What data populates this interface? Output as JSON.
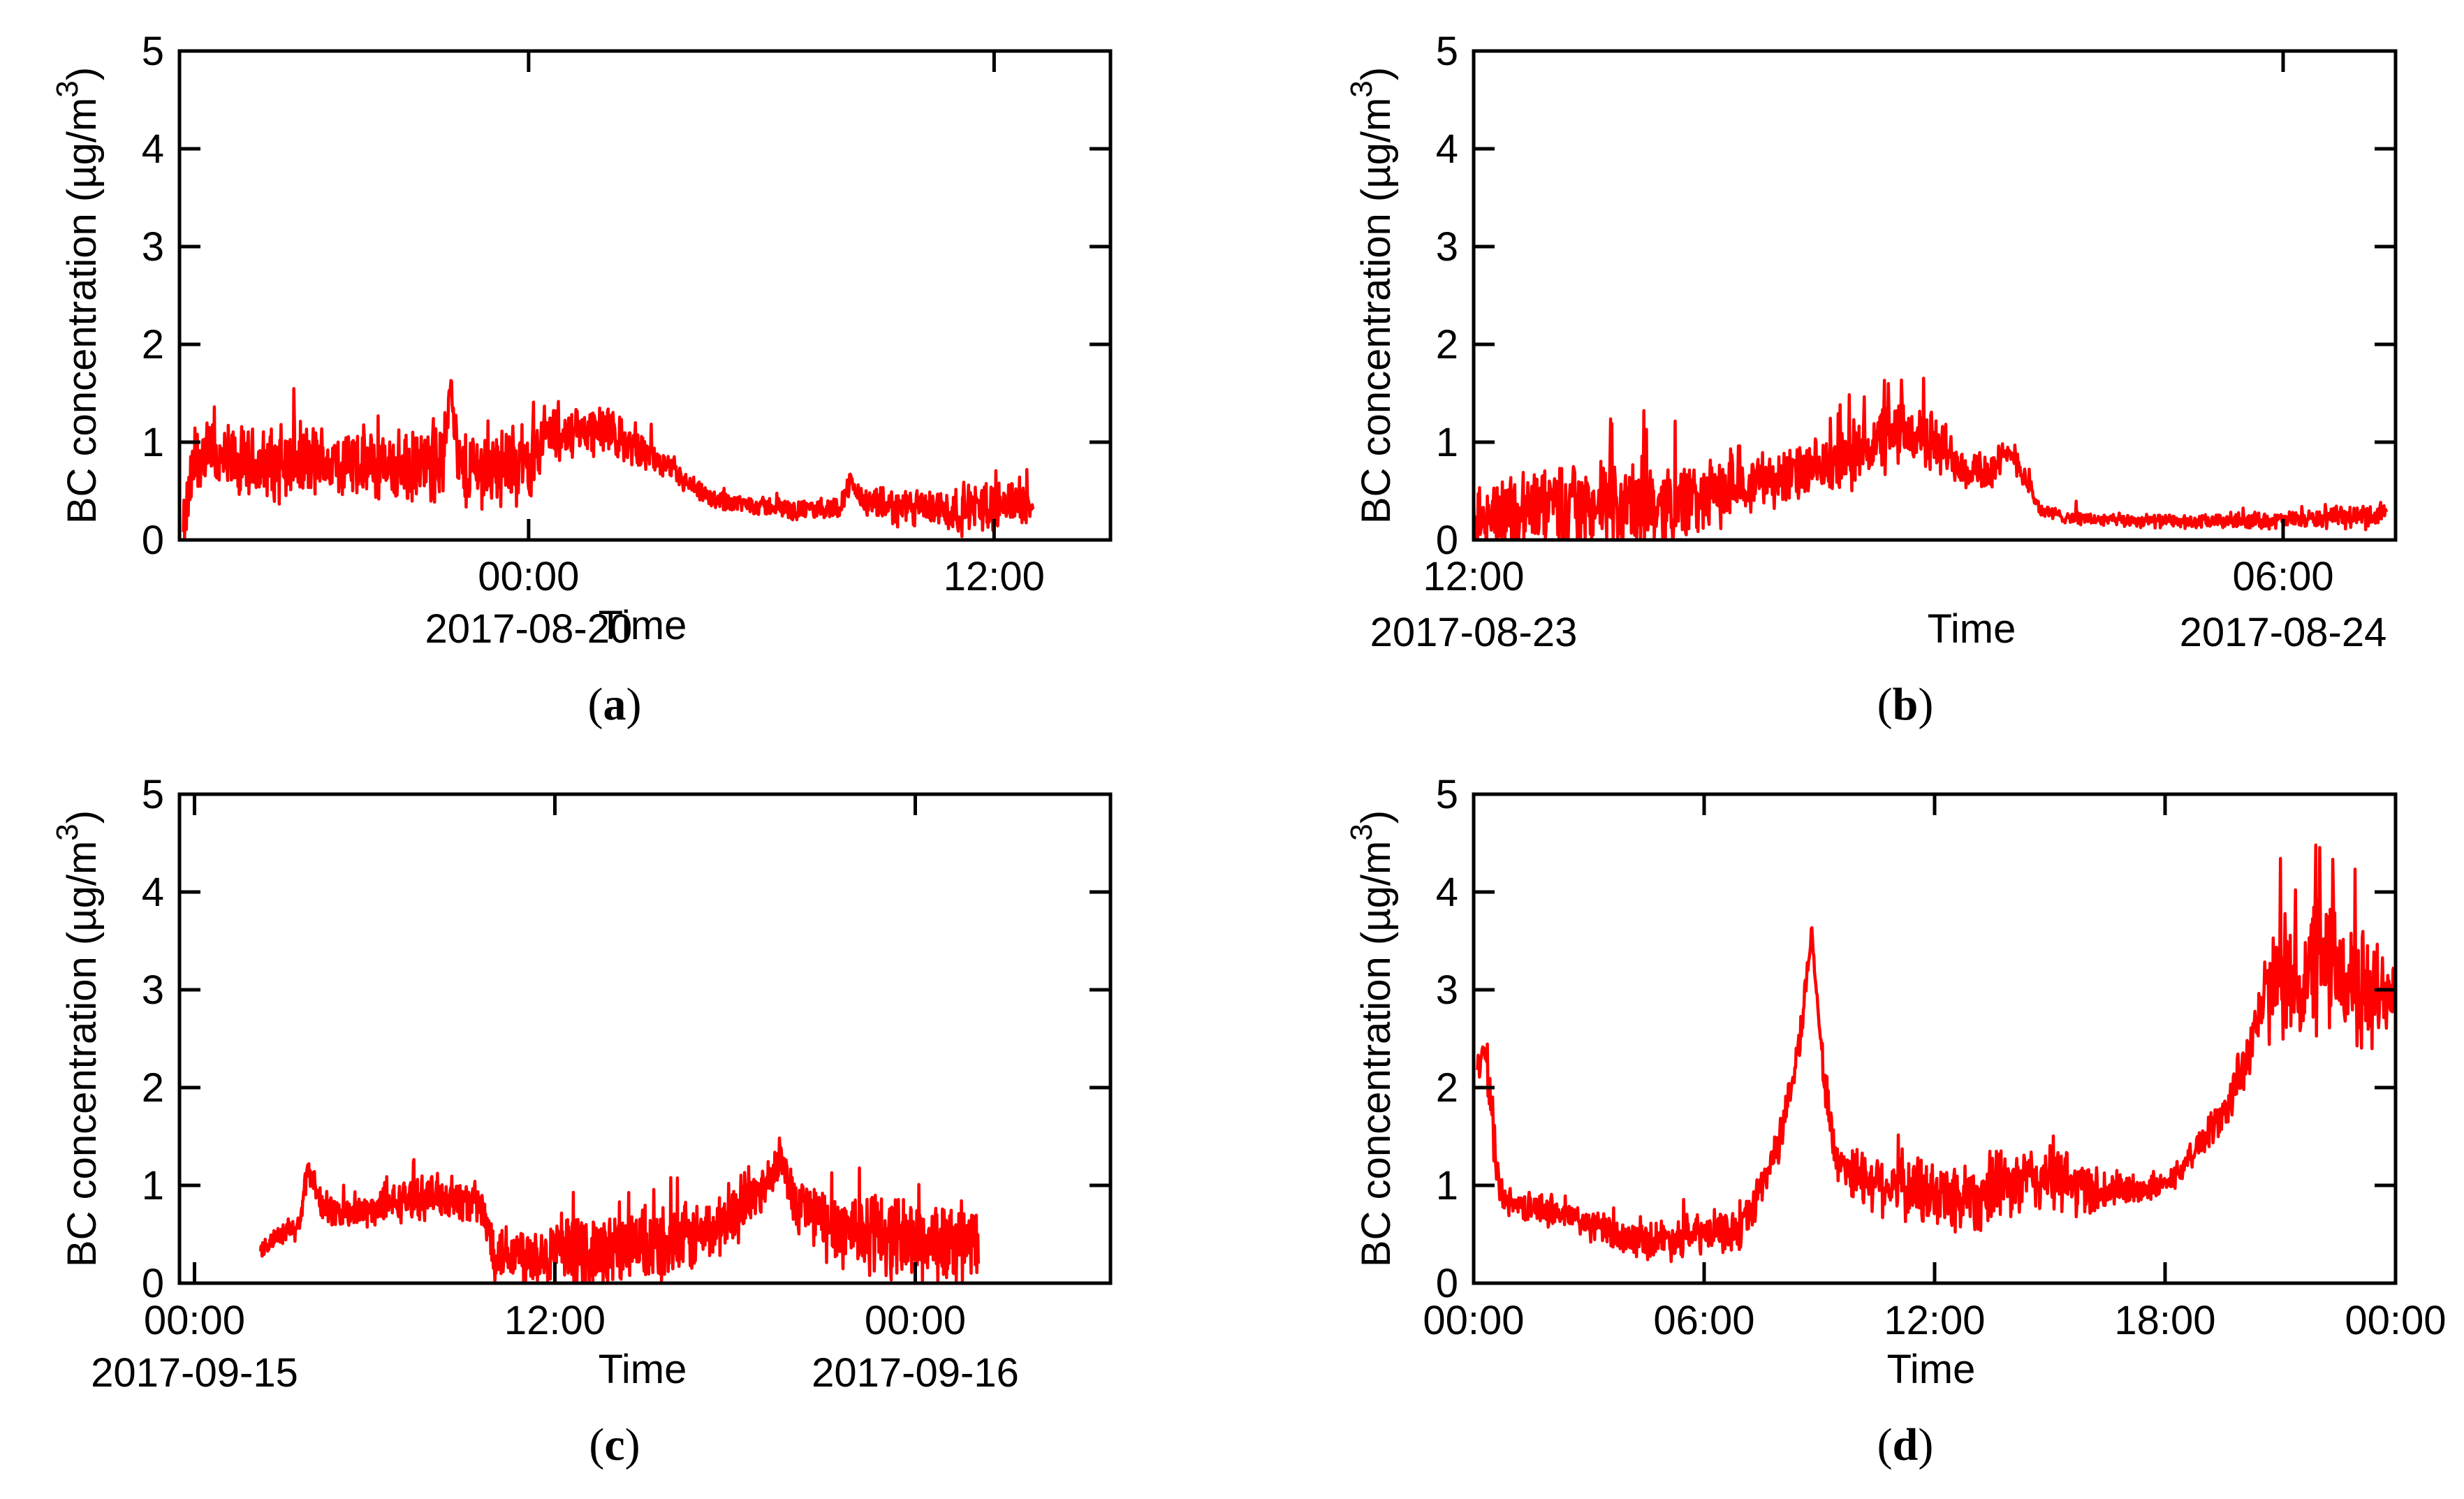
{
  "chart_data": [
    {
      "id": "a",
      "type": "line",
      "panel_label": "a",
      "ylabel": "BC concentration (µg/m",
      "ylabel_sup": "3",
      "ylabel_close": ")",
      "xlabel": "Time",
      "ylim": [
        0,
        5
      ],
      "yticks": [
        "0",
        "1",
        "2",
        "3",
        "4",
        "5"
      ],
      "xlim": [
        -9,
        15
      ],
      "xticks": [
        {
          "x": 0,
          "label": "00:00"
        },
        {
          "x": 12,
          "label": "12:00"
        }
      ],
      "date_labels": [
        {
          "x": 0,
          "label": "2017-08-20"
        }
      ],
      "series_color": "#ff0000",
      "series": [
        {
          "name": "BC",
          "x_start": -8.9,
          "x_end": 13.0,
          "points": [
            [
              -8.9,
              0.0
            ],
            [
              -8.7,
              0.6
            ],
            [
              -8.5,
              0.9
            ],
            [
              -8,
              0.8
            ],
            [
              -7,
              0.75
            ],
            [
              -6,
              0.8
            ],
            [
              -5,
              0.8
            ],
            [
              -4,
              0.75
            ],
            [
              -3,
              0.7
            ],
            [
              -2.2,
              0.8
            ],
            [
              -2,
              1.7
            ],
            [
              -1.8,
              0.7
            ],
            [
              -1,
              0.75
            ],
            [
              0,
              0.8
            ],
            [
              0.5,
              1.1
            ],
            [
              1,
              1.05
            ],
            [
              1.5,
              1.15
            ],
            [
              2,
              1.1
            ],
            [
              2.5,
              1.0
            ],
            [
              3,
              0.9
            ],
            [
              3.5,
              0.75
            ],
            [
              4,
              0.6
            ],
            [
              4.5,
              0.45
            ],
            [
              5,
              0.4
            ],
            [
              6,
              0.35
            ],
            [
              7,
              0.3
            ],
            [
              8,
              0.33
            ],
            [
              8.3,
              0.6
            ],
            [
              8.6,
              0.4
            ],
            [
              9,
              0.35
            ],
            [
              10,
              0.32
            ],
            [
              11,
              0.3
            ],
            [
              12,
              0.35
            ],
            [
              12.5,
              0.4
            ],
            [
              13.0,
              0.35
            ]
          ],
          "noise": [
            0.45,
            0.45,
            0.45,
            0.45,
            0.45,
            0.45,
            0.45,
            0.45,
            0.45,
            0.45,
            0.2,
            0.5,
            0.5,
            0.45,
            0.35,
            0.3,
            0.3,
            0.3,
            0.25,
            0.2,
            0.15,
            0.15,
            0.12,
            0.12,
            0.12,
            0.12,
            0.12,
            0.15,
            0.15,
            0.2,
            0.25,
            0.3,
            0.3,
            0.3,
            0.2
          ]
        }
      ]
    },
    {
      "id": "b",
      "type": "line",
      "panel_label": "b",
      "ylabel": "BC concentration (µg/m",
      "ylabel_sup": "3",
      "ylabel_close": ")",
      "xlabel": "Time",
      "ylim": [
        0,
        5
      ],
      "yticks": [
        "0",
        "1",
        "2",
        "3",
        "4",
        "5"
      ],
      "xlim": [
        12,
        32.5
      ],
      "xticks": [
        {
          "x": 12,
          "label": "12:00"
        },
        {
          "x": 30,
          "label": "06:00"
        }
      ],
      "date_labels": [
        {
          "x": 12,
          "label": "2017-08-23"
        },
        {
          "x": 30,
          "label": "2017-08-24"
        }
      ],
      "series_color": "#ff0000",
      "series": [
        {
          "name": "BC",
          "x_start": 12.0,
          "x_end": 32.3,
          "points": [
            [
              12.0,
              0.2
            ],
            [
              13,
              0.3
            ],
            [
              14,
              0.35
            ],
            [
              15,
              0.3
            ],
            [
              16,
              0.35
            ],
            [
              17,
              0.4
            ],
            [
              17.5,
              0.5
            ],
            [
              18,
              0.6
            ],
            [
              19,
              0.65
            ],
            [
              20,
              0.75
            ],
            [
              20.5,
              0.9
            ],
            [
              21,
              1.0
            ],
            [
              21.5,
              1.1
            ],
            [
              22,
              1.05
            ],
            [
              22.5,
              0.9
            ],
            [
              23,
              0.75
            ],
            [
              23.5,
              0.7
            ],
            [
              24,
              0.9
            ],
            [
              24.3,
              0.6
            ],
            [
              24.6,
              0.3
            ],
            [
              25,
              0.25
            ],
            [
              26,
              0.2
            ],
            [
              27,
              0.2
            ],
            [
              28,
              0.18
            ],
            [
              29,
              0.2
            ],
            [
              30,
              0.2
            ],
            [
              31,
              0.22
            ],
            [
              32,
              0.25
            ],
            [
              32.3,
              0.3
            ]
          ],
          "noise": [
            0.35,
            0.55,
            0.6,
            0.6,
            0.55,
            0.45,
            0.4,
            0.35,
            0.35,
            0.35,
            0.4,
            0.45,
            0.4,
            0.4,
            0.35,
            0.3,
            0.25,
            0.2,
            0.15,
            0.1,
            0.08,
            0.08,
            0.08,
            0.08,
            0.1,
            0.1,
            0.12,
            0.15,
            0.15
          ]
        }
      ]
    },
    {
      "id": "c",
      "type": "line",
      "panel_label": "c",
      "ylabel": "BC concentration (µg/m",
      "ylabel_sup": "3",
      "ylabel_close": ")",
      "xlabel": "Time",
      "ylim": [
        0,
        5
      ],
      "yticks": [
        "0",
        "1",
        "2",
        "3",
        "4",
        "5"
      ],
      "xlim": [
        -0.5,
        30.5
      ],
      "xticks": [
        {
          "x": 0,
          "label": "00:00"
        },
        {
          "x": 12,
          "label": "12:00"
        },
        {
          "x": 24,
          "label": "00:00"
        }
      ],
      "date_labels": [
        {
          "x": 0,
          "label": "2017-09-15"
        },
        {
          "x": 24,
          "label": "2017-09-16"
        }
      ],
      "series_color": "#ff0000",
      "series": [
        {
          "name": "BC",
          "x_start": 2.2,
          "x_end": 26.1,
          "points": [
            [
              2.2,
              0.35
            ],
            [
              3,
              0.5
            ],
            [
              3.5,
              0.6
            ],
            [
              3.8,
              1.2
            ],
            [
              4.2,
              0.8
            ],
            [
              5,
              0.7
            ],
            [
              6,
              0.75
            ],
            [
              7,
              0.85
            ],
            [
              8,
              0.9
            ],
            [
              9,
              0.85
            ],
            [
              9.5,
              0.8
            ],
            [
              10,
              0.35
            ],
            [
              11,
              0.3
            ],
            [
              12,
              0.3
            ],
            [
              13,
              0.3
            ],
            [
              14,
              0.35
            ],
            [
              15,
              0.35
            ],
            [
              16,
              0.4
            ],
            [
              17,
              0.5
            ],
            [
              18,
              0.7
            ],
            [
              19,
              1.0
            ],
            [
              19.5,
              1.3
            ],
            [
              20,
              0.85
            ],
            [
              21,
              0.6
            ],
            [
              22,
              0.55
            ],
            [
              23,
              0.5
            ],
            [
              24,
              0.45
            ],
            [
              25,
              0.4
            ],
            [
              26,
              0.4
            ],
            [
              26.1,
              0.3
            ]
          ],
          "noise": [
            0.1,
            0.15,
            0.2,
            0.15,
            0.2,
            0.2,
            0.2,
            0.25,
            0.25,
            0.25,
            0.25,
            0.35,
            0.4,
            0.4,
            0.45,
            0.45,
            0.45,
            0.45,
            0.4,
            0.35,
            0.3,
            0.2,
            0.35,
            0.45,
            0.5,
            0.5,
            0.5,
            0.5,
            0.45,
            0.3
          ]
        }
      ]
    },
    {
      "id": "d",
      "type": "line",
      "panel_label": "d",
      "ylabel": "BC concentration (µg/m",
      "ylabel_sup": "3",
      "ylabel_close": ")",
      "xlabel": "Time",
      "ylim": [
        0,
        5
      ],
      "yticks": [
        "0",
        "1",
        "2",
        "3",
        "4",
        "5"
      ],
      "xlim": [
        0,
        24
      ],
      "xticks": [
        {
          "x": 0,
          "label": "00:00"
        },
        {
          "x": 6,
          "label": "06:00"
        },
        {
          "x": 12,
          "label": "12:00"
        },
        {
          "x": 18,
          "label": "18:00"
        },
        {
          "x": 24,
          "label": "00:00"
        }
      ],
      "date_labels": [],
      "series_color": "#ff0000",
      "series": [
        {
          "name": "BC",
          "x_start": 0.1,
          "x_end": 23.95,
          "points": [
            [
              0.1,
              2.2
            ],
            [
              0.3,
              2.4
            ],
            [
              0.5,
              1.6
            ],
            [
              0.7,
              0.9
            ],
            [
              1,
              0.8
            ],
            [
              2,
              0.75
            ],
            [
              3,
              0.6
            ],
            [
              4,
              0.45
            ],
            [
              5,
              0.45
            ],
            [
              6,
              0.5
            ],
            [
              7,
              0.55
            ],
            [
              7.5,
              1.0
            ],
            [
              8,
              1.5
            ],
            [
              8.5,
              2.5
            ],
            [
              8.8,
              3.6
            ],
            [
              9.1,
              2.2
            ],
            [
              9.4,
              1.3
            ],
            [
              10,
              1.1
            ],
            [
              11,
              1.0
            ],
            [
              12,
              0.9
            ],
            [
              13,
              0.9
            ],
            [
              14,
              1.0
            ],
            [
              15,
              1.1
            ],
            [
              16,
              0.95
            ],
            [
              17,
              0.95
            ],
            [
              18,
              1.0
            ],
            [
              18.5,
              1.2
            ],
            [
              19,
              1.5
            ],
            [
              19.5,
              1.7
            ],
            [
              20,
              2.2
            ],
            [
              20.5,
              2.8
            ],
            [
              21,
              3.2
            ],
            [
              21.5,
              3.0
            ],
            [
              22,
              3.3
            ],
            [
              22.5,
              3.2
            ],
            [
              23,
              3.0
            ],
            [
              23.5,
              2.9
            ],
            [
              23.95,
              3.1
            ]
          ],
          "noise": [
            0.2,
            0.2,
            0.3,
            0.2,
            0.15,
            0.2,
            0.2,
            0.2,
            0.25,
            0.25,
            0.25,
            0.25,
            0.25,
            0.25,
            0.1,
            0.25,
            0.3,
            0.35,
            0.4,
            0.45,
            0.45,
            0.4,
            0.45,
            0.35,
            0.2,
            0.15,
            0.15,
            0.2,
            0.25,
            0.35,
            0.5,
            0.7,
            0.8,
            0.9,
            0.8,
            0.8,
            0.7,
            0.5
          ]
        }
      ]
    }
  ]
}
